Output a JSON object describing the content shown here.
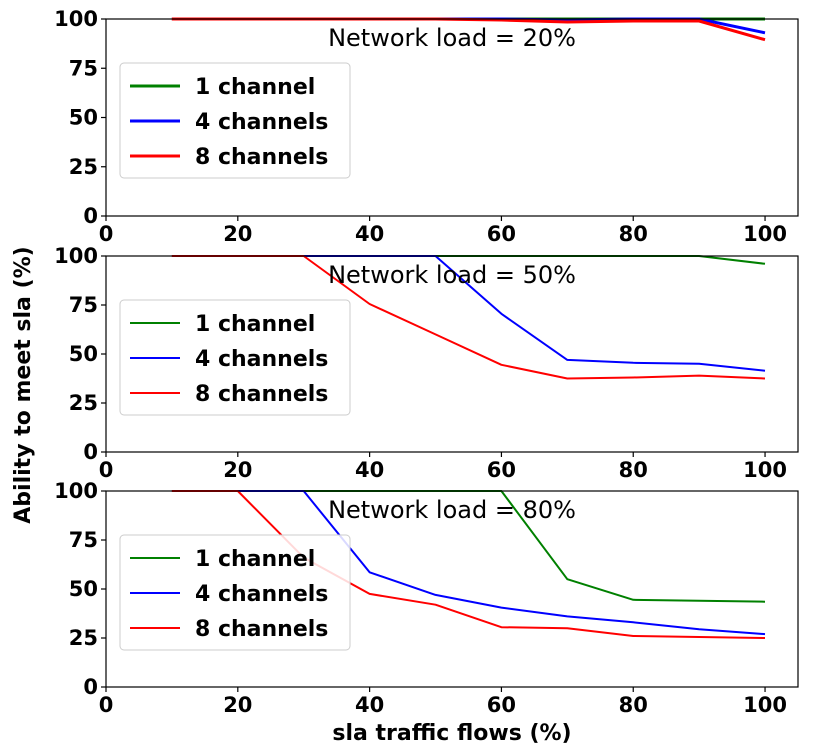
{
  "chart_data": {
    "type": "line",
    "xlabel": "sla traffic flows (%)",
    "ylabel": "Ability to meet sla (%)",
    "xlim": [
      0,
      105
    ],
    "ylim": [
      0,
      100
    ],
    "xticks": [
      0,
      20,
      40,
      60,
      80,
      100
    ],
    "yticks": [
      0,
      25,
      50,
      75,
      100
    ],
    "grid": false,
    "legend_position": "left",
    "colors": {
      "1 channel": "#008000",
      "4 channels": "#0000ff",
      "8 channels": "#ff0000"
    },
    "x": [
      10,
      20,
      30,
      40,
      50,
      60,
      70,
      80,
      90,
      100
    ],
    "panels": [
      {
        "title": "Network load = 20%",
        "bold_lines": true,
        "series": [
          {
            "name": "1 channel",
            "values": [
              100,
              100,
              100,
              100,
              100,
              100,
              100,
              100,
              100,
              100
            ]
          },
          {
            "name": "4 channels",
            "values": [
              100,
              100,
              100,
              100,
              100,
              100,
              99.5,
              100,
              100,
              93
            ]
          },
          {
            "name": "8 channels",
            "values": [
              100,
              100,
              100,
              100,
              100,
              99.5,
              98.5,
              99,
              99,
              89.5
            ]
          }
        ]
      },
      {
        "title": "Network load = 50%",
        "bold_lines": false,
        "series": [
          {
            "name": "1 channel",
            "values": [
              100,
              100,
              100,
              100,
              100,
              100,
              100,
              100,
              100,
              96
            ]
          },
          {
            "name": "4 channels",
            "values": [
              100,
              100,
              100,
              100,
              100,
              70.5,
              47,
              45.5,
              45,
              41.5
            ]
          },
          {
            "name": "8 channels",
            "values": [
              100,
              100,
              100,
              75.5,
              60,
              44.5,
              37.5,
              38,
              39,
              37.5
            ]
          }
        ]
      },
      {
        "title": "Network load = 80%",
        "bold_lines": false,
        "series": [
          {
            "name": "1 channel",
            "values": [
              100,
              100,
              100,
              100,
              100,
              100,
              55,
              44.5,
              44,
              43.5
            ]
          },
          {
            "name": "4 channels",
            "values": [
              100,
              100,
              100,
              58.5,
              47,
              40.5,
              36,
              33,
              29.5,
              27
            ]
          },
          {
            "name": "8 channels",
            "values": [
              100,
              100,
              66,
              47.5,
              42,
              30.5,
              30,
              26,
              25.5,
              25
            ]
          }
        ]
      }
    ]
  }
}
